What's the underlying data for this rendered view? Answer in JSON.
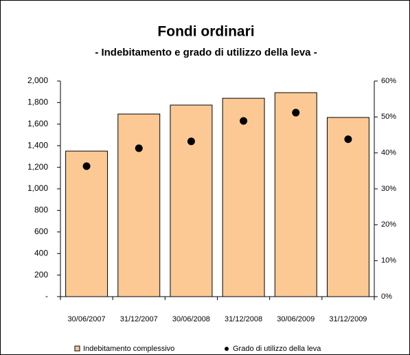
{
  "chart_data": {
    "type": "bar",
    "title": "Fondi ordinari",
    "subtitle": "- Indebitamento e grado di utilizzo della leva -",
    "categories": [
      "30/06/2007",
      "31/12/2007",
      "30/06/2008",
      "31/12/2008",
      "30/06/2009",
      "31/12/2009"
    ],
    "series": [
      {
        "name": "Indebitamento complessivo",
        "type": "bar",
        "color": "#fcc995",
        "values": [
          1350,
          1694,
          1777,
          1840,
          1892,
          1662
        ]
      },
      {
        "name": "Grado di utilizzo della leva",
        "type": "scatter",
        "color": "#000000",
        "axis": "y2",
        "values": [
          36.3,
          41.3,
          43.2,
          48.9,
          51.2,
          43.8
        ]
      }
    ],
    "ylim": [
      0,
      2000
    ],
    "yticks": [
      {
        "value": 0,
        "label": "-"
      },
      200,
      400,
      600,
      800,
      {
        "value": 1000,
        "label": "1,000"
      },
      {
        "value": 1200,
        "label": "1,200"
      },
      {
        "value": 1400,
        "label": "1,400"
      },
      {
        "value": 1600,
        "label": "1,600"
      },
      {
        "value": 1800,
        "label": "1,800"
      },
      {
        "value": 2000,
        "label": "2,000"
      }
    ],
    "y2lim": [
      0,
      60
    ],
    "y2ticks": [
      {
        "value": 0,
        "label": "0%"
      },
      {
        "value": 10,
        "label": "10%"
      },
      {
        "value": 20,
        "label": "20%"
      },
      {
        "value": 30,
        "label": "30%"
      },
      {
        "value": 40,
        "label": "40%"
      },
      {
        "value": 50,
        "label": "50%"
      },
      {
        "value": 60,
        "label": "60%"
      }
    ],
    "grid": false,
    "legend": "bottom"
  }
}
